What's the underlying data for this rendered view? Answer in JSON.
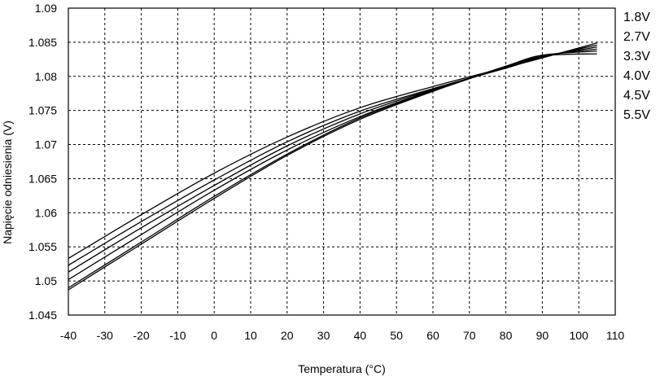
{
  "chart_data": {
    "type": "line",
    "title": "",
    "xlabel": "Temperatura (°C)",
    "ylabel": "Napięcie odniesienia (V)",
    "xlim": [
      -40,
      110
    ],
    "ylim": [
      1.045,
      1.09
    ],
    "x_ticks": [
      "-40",
      "-30",
      "-20",
      "-10",
      "0",
      "10",
      "20",
      "30",
      "40",
      "50",
      "60",
      "70",
      "80",
      "90",
      "100",
      "110"
    ],
    "y_ticks": [
      "1.045",
      "1.05",
      "1.055",
      "1.06",
      "1.065",
      "1.07",
      "1.075",
      "1.08",
      "1.085",
      "1.09"
    ],
    "grid": true,
    "legend_position": "right",
    "line_color": "#000000",
    "series": [
      {
        "name": "1.8V",
        "x": [
          -40,
          -20,
          0,
          20,
          40,
          60,
          80,
          90,
          105
        ],
        "y": [
          1.0533,
          1.0597,
          1.0658,
          1.0711,
          1.0754,
          1.0785,
          1.0813,
          1.0827,
          1.0849
        ]
      },
      {
        "name": "2.7V",
        "x": [
          -40,
          -20,
          0,
          20,
          40,
          60,
          80,
          90,
          105
        ],
        "y": [
          1.0523,
          1.0587,
          1.0648,
          1.0704,
          1.0749,
          1.0782,
          1.0812,
          1.0828,
          1.0846
        ]
      },
      {
        "name": "3.3V",
        "x": [
          -40,
          -20,
          0,
          20,
          40,
          60,
          80,
          90,
          105
        ],
        "y": [
          1.0513,
          1.0578,
          1.064,
          1.0698,
          1.0745,
          1.0781,
          1.0813,
          1.0829,
          1.0843
        ]
      },
      {
        "name": "4.0V",
        "x": [
          -40,
          -20,
          0,
          20,
          40,
          60,
          80,
          90,
          105
        ],
        "y": [
          1.0502,
          1.0568,
          1.0633,
          1.0692,
          1.0741,
          1.078,
          1.0813,
          1.083,
          1.084
        ]
      },
      {
        "name": "4.5V",
        "x": [
          -40,
          -20,
          0,
          20,
          40,
          60,
          80,
          90,
          105
        ],
        "y": [
          1.049,
          1.0557,
          1.0624,
          1.0686,
          1.0739,
          1.0779,
          1.0815,
          1.0831,
          1.0837
        ]
      },
      {
        "name": "5.5V",
        "x": [
          -40,
          -20,
          0,
          20,
          40,
          60,
          80,
          90,
          105
        ],
        "y": [
          1.0487,
          1.0554,
          1.0621,
          1.0684,
          1.0737,
          1.0778,
          1.0814,
          1.083,
          1.0833
        ]
      }
    ]
  }
}
